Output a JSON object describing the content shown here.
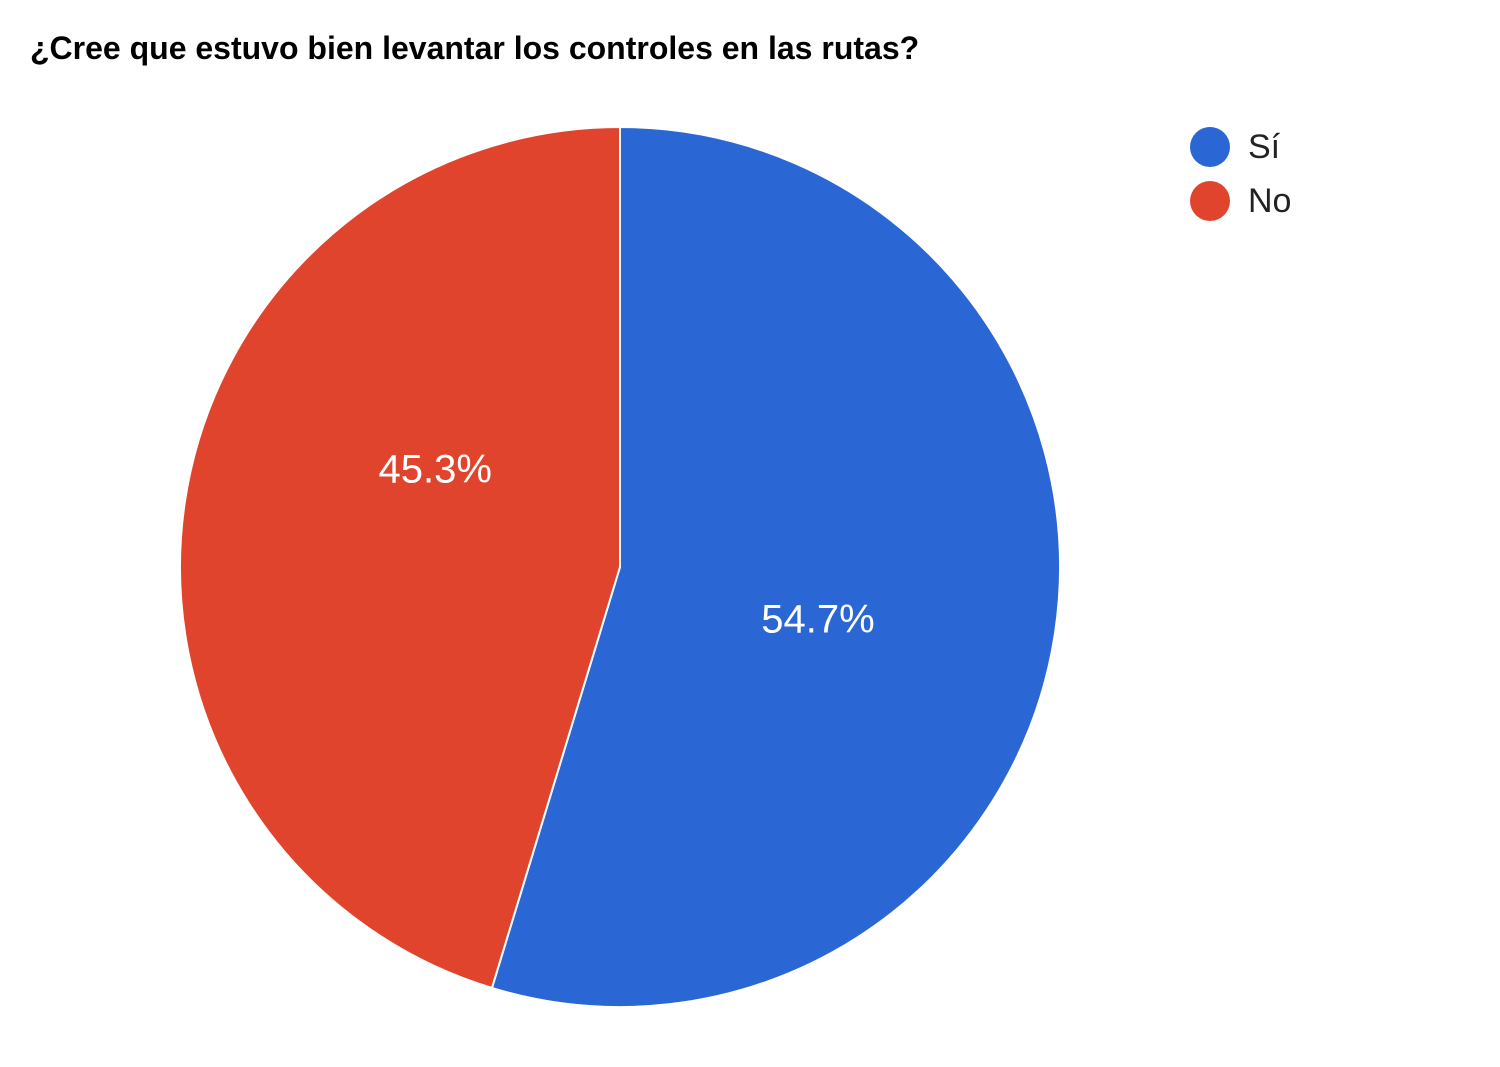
{
  "chart": {
    "type": "pie",
    "title": "¿Cree que estuvo bien levantar los controles en las rutas?",
    "title_fontsize": 32,
    "title_color": "#000000",
    "background_color": "#ffffff",
    "radius": 440,
    "stroke_color": "#ffffff",
    "stroke_width": 2,
    "label_fontsize": 40,
    "label_color": "#ffffff",
    "legend_fontsize": 34,
    "legend_text_color": "#222222",
    "legend_marker_size": 40,
    "slices": [
      {
        "label": "Sí",
        "value": 54.7,
        "display": "54.7%",
        "color": "#2a67d4"
      },
      {
        "label": "No",
        "value": 45.3,
        "display": "45.3%",
        "color": "#e1442d"
      }
    ]
  }
}
